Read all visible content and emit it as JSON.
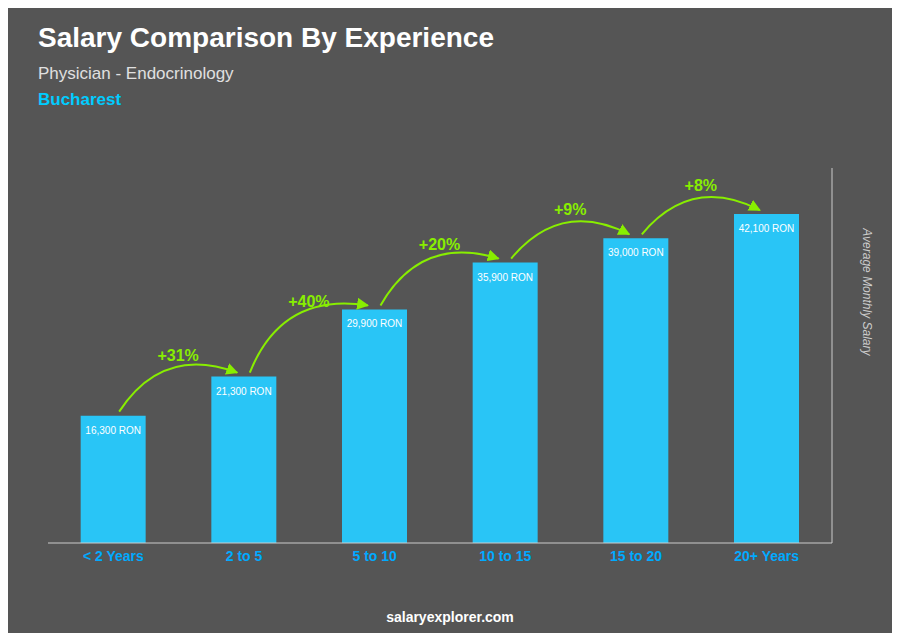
{
  "chart_data": {
    "type": "bar",
    "title": "Salary Comparison By Experience",
    "subtitle": "Physician - Endocrinology",
    "ylabel": "Average Monthly Salary",
    "categories": [
      "< 2 Years",
      "2 to 5",
      "5 to 10",
      "10 to 15",
      "15 to 20",
      "20+ Years"
    ],
    "values": [
      16300,
      21300,
      29900,
      35900,
      39000,
      42100
    ],
    "value_labels": [
      "16,300 RON",
      "21,300 RON",
      "29,900 RON",
      "35,900 RON",
      "39,000 RON",
      "42,100 RON"
    ],
    "data_labels": true,
    "color": "#29c5f6",
    "ylim": [
      0,
      48000
    ],
    "grid": false,
    "tick_labels": "x",
    "annotations": [
      {
        "text": "Bucharest",
        "color": "#00ccff"
      },
      {
        "text": "salaryexplorer.com"
      },
      {
        "text": "+31%",
        "color": "#88ee00",
        "from": "< 2 Years",
        "to": "2 to 5"
      },
      {
        "text": "+40%",
        "color": "#88ee00",
        "from": "2 to 5",
        "to": "5 to 10"
      },
      {
        "text": "+20%",
        "color": "#88ee00",
        "from": "5 to 10",
        "to": "10 to 15"
      },
      {
        "text": "+9%",
        "color": "#88ee00",
        "from": "10 to 15",
        "to": "15 to 20"
      },
      {
        "text": "+8%",
        "color": "#88ee00",
        "from": "15 to 20",
        "to": "20+ Years"
      }
    ]
  }
}
